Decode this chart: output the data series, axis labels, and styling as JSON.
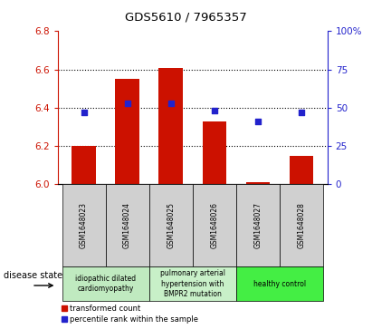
{
  "title": "GDS5610 / 7965357",
  "samples": [
    "GSM1648023",
    "GSM1648024",
    "GSM1648025",
    "GSM1648026",
    "GSM1648027",
    "GSM1648028"
  ],
  "transformed_count": [
    6.2,
    6.55,
    6.61,
    6.33,
    6.01,
    6.15
  ],
  "percentile_rank": [
    47,
    53,
    53,
    48,
    41,
    47
  ],
  "ylim_left": [
    6.0,
    6.8
  ],
  "ylim_right": [
    0,
    100
  ],
  "yticks_left": [
    6.0,
    6.2,
    6.4,
    6.6,
    6.8
  ],
  "yticks_right": [
    0,
    25,
    50,
    75,
    100
  ],
  "ytick_labels_right": [
    "0",
    "25",
    "50",
    "75",
    "100%"
  ],
  "bar_color": "#cc1100",
  "scatter_color": "#2222cc",
  "bar_width": 0.55,
  "disease_groups": [
    {
      "label": "idiopathic dilated\ncardiomyopathy",
      "start": 0,
      "end": 2,
      "color": "#c0eac0"
    },
    {
      "label": "pulmonary arterial\nhypertension with\nBMPR2 mutation",
      "start": 2,
      "end": 4,
      "color": "#c8f0c8"
    },
    {
      "label": "healthy control",
      "start": 4,
      "end": 6,
      "color": "#44ee44"
    }
  ],
  "legend_red_label": "transformed count",
  "legend_blue_label": "percentile rank within the sample",
  "disease_state_label": "disease state",
  "tick_color_left": "#cc1100",
  "tick_color_right": "#2222cc",
  "sample_box_color": "#d0d0d0",
  "gridline_ticks": [
    6.2,
    6.4,
    6.6
  ]
}
